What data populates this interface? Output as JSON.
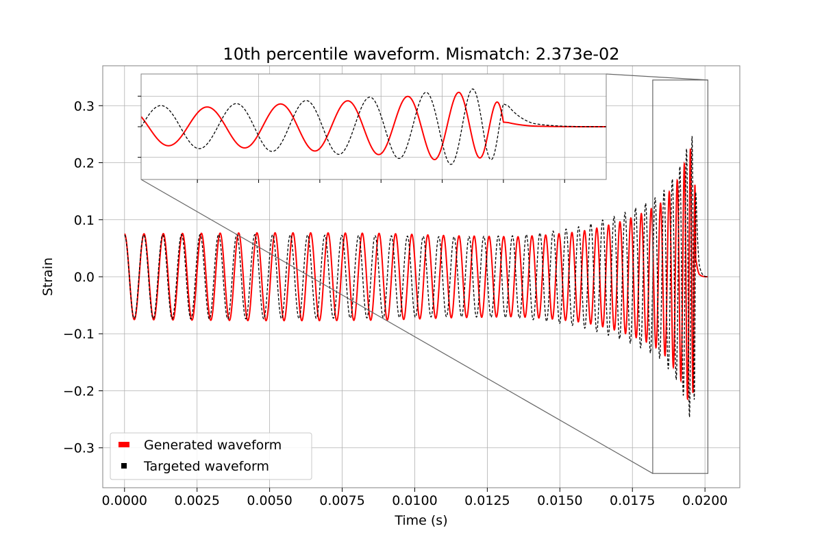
{
  "chart_data": {
    "type": "line",
    "title": "10th percentile waveform. Mismatch: 2.373e-02",
    "xlabel": "Time (s)",
    "ylabel": "Strain",
    "xlim": [
      -0.00075,
      0.0212
    ],
    "ylim": [
      -0.37,
      0.37
    ],
    "grid": true,
    "legend_position": "lower-left",
    "x_ticks": [
      0.0,
      0.0025,
      0.005,
      0.0075,
      0.01,
      0.0125,
      0.015,
      0.0175,
      0.02
    ],
    "x_tick_labels": [
      "0.0000",
      "0.0025",
      "0.0050",
      "0.0075",
      "0.0100",
      "0.0125",
      "0.0150",
      "0.0175",
      "0.0200"
    ],
    "y_ticks": [
      -0.3,
      -0.2,
      -0.1,
      0.0,
      0.1,
      0.2,
      0.3
    ],
    "y_tick_labels": [
      "−0.3",
      "−0.2",
      "−0.1",
      "0.0",
      "0.1",
      "0.2",
      "0.3"
    ],
    "series": [
      {
        "name": "Generated waveform",
        "color": "#ff0000",
        "style": "solid",
        "x": [
          0.0,
          0.0022,
          0.0045,
          0.0067,
          0.009,
          0.0112,
          0.0135,
          0.0145,
          0.0155,
          0.016,
          0.0165,
          0.017,
          0.0175,
          0.018,
          0.0185,
          0.019,
          0.0192,
          0.0194,
          0.0195,
          0.0196,
          0.0197,
          0.0198,
          0.02,
          0.0201
        ],
        "amplitude": [
          0.075,
          0.076,
          0.077,
          0.077,
          0.076,
          0.072,
          0.07,
          0.073,
          0.078,
          0.082,
          0.088,
          0.095,
          0.104,
          0.115,
          0.13,
          0.165,
          0.185,
          0.215,
          0.225,
          0.2,
          0.13,
          0.05,
          0.008,
          0.0
        ],
        "chirp_cycles": 40.5,
        "phase_offset": 0.0
      },
      {
        "name": "Targeted waveform",
        "color": "#000000",
        "style": "dashed",
        "x": [
          0.0,
          0.0022,
          0.0045,
          0.0067,
          0.009,
          0.0112,
          0.0135,
          0.0145,
          0.0155,
          0.016,
          0.0165,
          0.017,
          0.0175,
          0.018,
          0.0185,
          0.019,
          0.0192,
          0.0194,
          0.0195,
          0.0196,
          0.0197,
          0.0198,
          0.02,
          0.0201
        ],
        "amplitude": [
          0.073,
          0.074,
          0.074,
          0.073,
          0.072,
          0.07,
          0.072,
          0.078,
          0.086,
          0.092,
          0.1,
          0.108,
          0.118,
          0.13,
          0.145,
          0.18,
          0.2,
          0.23,
          0.255,
          0.24,
          0.16,
          0.06,
          0.008,
          0.0
        ],
        "chirp_cycles": 41.2,
        "phase_offset": 0.0
      }
    ],
    "inset": {
      "xlim": [
        0.0182,
        0.0201
      ],
      "ylim": [
        -0.345,
        0.345
      ],
      "ticks": "unlabeled"
    }
  },
  "legend": {
    "generated": "Generated waveform",
    "targeted": "Targeted waveform",
    "generated_color": "#ff0000",
    "targeted_color": "#000000"
  },
  "colors": {
    "grid": "#b0b0b0",
    "frame": "#808080",
    "zoom_connector": "#666666"
  }
}
